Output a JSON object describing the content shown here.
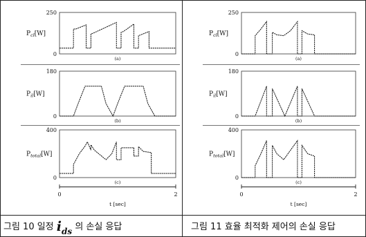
{
  "figure_10": {
    "caption_pre": "그림 10 일정",
    "caption_var": "i",
    "caption_sub": "ds",
    "caption_post": "의 손실 응답",
    "xaxis_label": "t [sec]",
    "xticks": [
      "0",
      "2"
    ],
    "panels": [
      {
        "id": "a",
        "label_main": "P",
        "label_sub": "cl",
        "label_unit": "[W]",
        "panel_label": "(a)",
        "ymax_label": "250",
        "ymin_label": "0",
        "ylim": [
          0,
          250
        ],
        "x": [
          0.0,
          0.24,
          0.24,
          0.28,
          0.46,
          0.46,
          0.54,
          0.54,
          0.58,
          0.98,
          0.98,
          1.06,
          1.06,
          1.1,
          1.28,
          1.28,
          1.36,
          1.36,
          1.4,
          1.54,
          1.54,
          2.0
        ],
        "y": [
          35,
          35,
          150,
          150,
          175,
          35,
          35,
          120,
          125,
          190,
          35,
          35,
          130,
          135,
          180,
          35,
          35,
          110,
          115,
          135,
          35,
          35
        ]
      },
      {
        "id": "b",
        "label_main": "P",
        "label_sub": "il",
        "label_unit": "[W]",
        "panel_label": "(b)",
        "ymax_label": "180",
        "ymin_label": "0",
        "ylim": [
          0,
          180
        ],
        "x": [
          0.0,
          0.24,
          0.32,
          0.44,
          0.72,
          0.8,
          0.92,
          1.0,
          1.12,
          1.44,
          1.52,
          1.64,
          2.0
        ],
        "y": [
          0,
          0,
          50,
          120,
          120,
          50,
          0,
          50,
          120,
          120,
          50,
          0,
          0
        ]
      },
      {
        "id": "c",
        "label_main": "P",
        "label_sub": "total",
        "label_unit": "[W]",
        "panel_label": "(c)",
        "ymax_label": "400",
        "ymin_label": "0",
        "ylim": [
          0,
          400
        ],
        "x": [
          0.0,
          0.24,
          0.24,
          0.34,
          0.44,
          0.48,
          0.54,
          0.54,
          0.6,
          0.7,
          0.8,
          0.9,
          0.98,
          0.98,
          1.06,
          1.06,
          1.12,
          1.28,
          1.28,
          1.36,
          1.36,
          1.44,
          1.58,
          1.58,
          2.0
        ],
        "y": [
          35,
          35,
          110,
          200,
          265,
          300,
          230,
          275,
          230,
          190,
          150,
          200,
          300,
          150,
          150,
          250,
          250,
          250,
          180,
          180,
          260,
          220,
          210,
          35,
          35
        ]
      }
    ]
  },
  "figure_11": {
    "caption": "그림 11 효율 최적화 제어의 손실 응답",
    "xaxis_label": "t [sec]",
    "xticks": [
      "0",
      "2"
    ],
    "panels": [
      {
        "id": "a",
        "label_main": "P",
        "label_sub": "cl",
        "label_unit": "[W]",
        "panel_label": "(a)",
        "ymax_label": "250",
        "ymin_label": "0",
        "ylim": [
          0,
          250
        ],
        "x": [
          0.0,
          0.24,
          0.24,
          0.34,
          0.44,
          0.44,
          0.54,
          0.54,
          0.62,
          0.74,
          0.86,
          0.98,
          0.98,
          1.06,
          1.06,
          1.16,
          1.28,
          1.28,
          2.0
        ],
        "y": [
          0,
          0,
          110,
          150,
          195,
          0,
          0,
          130,
          115,
          110,
          140,
          195,
          0,
          0,
          140,
          120,
          115,
          0,
          0
        ]
      },
      {
        "id": "b",
        "label_main": "P",
        "label_sub": "il",
        "label_unit": "[W]",
        "panel_label": "(b)",
        "ymax_label": "180",
        "ymin_label": "0",
        "ylim": [
          0,
          180
        ],
        "x": [
          0.0,
          0.24,
          0.44,
          0.44,
          0.54,
          0.54,
          0.76,
          0.98,
          0.98,
          1.06,
          1.06,
          1.28,
          1.28,
          2.0
        ],
        "y": [
          0,
          0,
          120,
          0,
          0,
          110,
          0,
          120,
          0,
          0,
          110,
          0,
          0,
          0
        ]
      },
      {
        "id": "c",
        "label_main": "P",
        "label_sub": "total",
        "label_unit": "[W]",
        "panel_label": "(c)",
        "ymax_label": "400",
        "ymin_label": "0",
        "ylim": [
          0,
          400
        ],
        "x": [
          0.0,
          0.24,
          0.24,
          0.34,
          0.44,
          0.44,
          0.54,
          0.54,
          0.62,
          0.74,
          0.86,
          0.98,
          0.98,
          1.06,
          1.06,
          1.16,
          1.28,
          1.28,
          2.0
        ],
        "y": [
          0,
          0,
          100,
          200,
          310,
          0,
          0,
          270,
          200,
          150,
          230,
          310,
          0,
          0,
          270,
          200,
          180,
          0,
          0
        ]
      }
    ]
  }
}
